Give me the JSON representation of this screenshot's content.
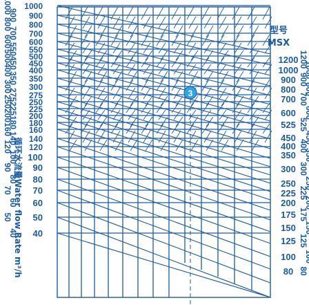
{
  "flow_axis": {
    "title": "循环水流量Water flow Rate  m³/h",
    "values": [
      "1000",
      "900",
      "800",
      "700",
      "600",
      "550",
      "500",
      "450",
      "400",
      "350",
      "300",
      "275",
      "250",
      "225",
      "200",
      "180",
      "160",
      "140",
      "120",
      "100",
      "90",
      "80",
      "70",
      "60",
      "50",
      "40"
    ],
    "rot_labels": [
      "1000",
      "900",
      "800",
      "700",
      "600",
      "550",
      "500",
      "450",
      "400",
      "350",
      "300",
      "275",
      "250",
      "225",
      "200",
      "180",
      "160",
      "140",
      "120",
      "100",
      "90",
      "80",
      "70",
      "60",
      "50",
      "40"
    ]
  },
  "model_axis": {
    "title_zh": "型号",
    "title_en": "MSX",
    "values": [
      "1200",
      "1000",
      "900",
      "800",
      "700",
      "600",
      "525",
      "450",
      "400",
      "350",
      "300",
      "250",
      "225",
      "200",
      "175",
      "150",
      "125",
      "100",
      "80"
    ],
    "rot_labels": [
      "1200",
      "1000",
      "900",
      "800",
      "700",
      "600",
      "525",
      "450",
      "400",
      "350",
      "300",
      "250",
      "225",
      "200",
      "175",
      "150",
      "125",
      "100",
      "80"
    ]
  },
  "marker": {
    "label": "3"
  },
  "colors": {
    "accent": "#1a5ba8",
    "marker_fill": "#2fa4e7",
    "background": "#ffffff"
  }
}
